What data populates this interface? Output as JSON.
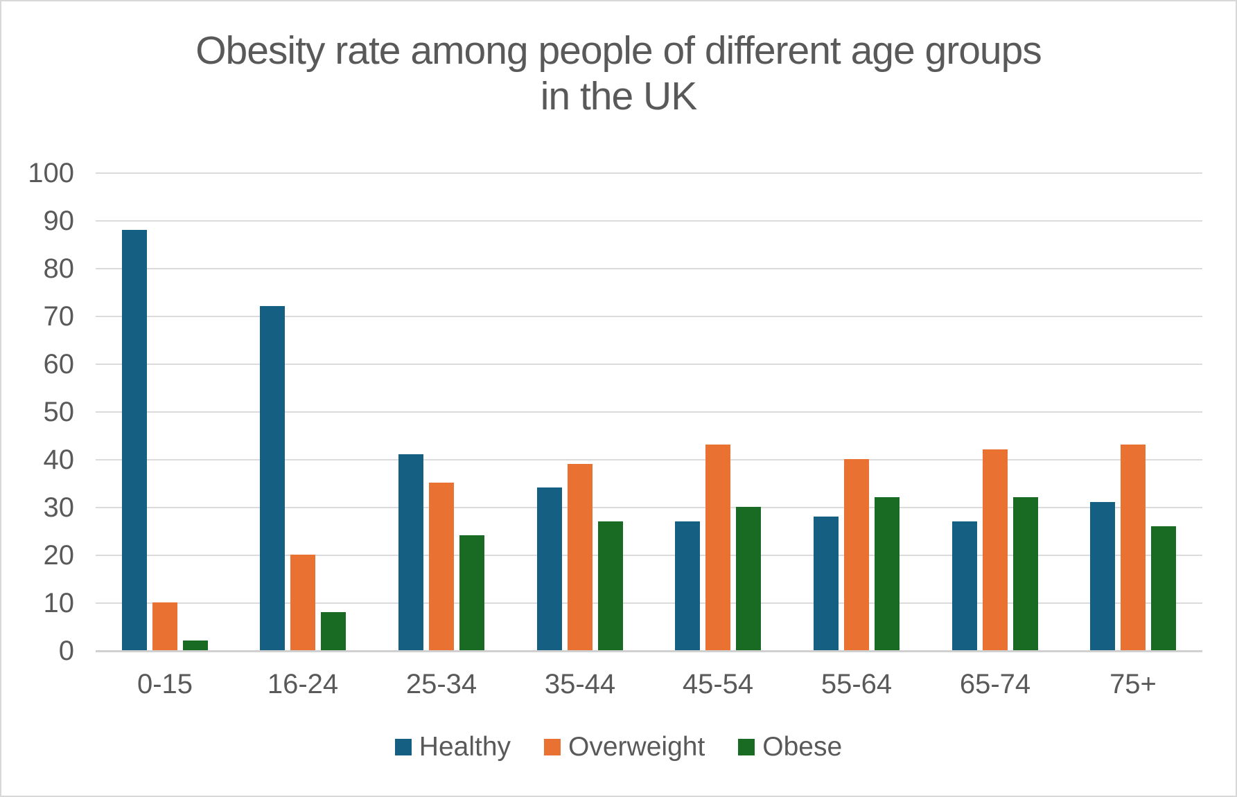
{
  "title": {
    "lines": [
      "Obesity rate among people of different age groups",
      "in the UK"
    ]
  },
  "chart_data": {
    "type": "bar",
    "title": "Obesity rate among people of different age groups in the UK",
    "categories": [
      "0-15",
      "16-24",
      "25-34",
      "35-44",
      "45-54",
      "55-64",
      "65-74",
      "75+"
    ],
    "series": [
      {
        "name": "Healthy",
        "color": "#156082",
        "values": [
          88,
          72,
          41,
          34,
          27,
          28,
          27,
          31
        ]
      },
      {
        "name": "Overweight",
        "color": "#E97132",
        "values": [
          10,
          20,
          35,
          39,
          43,
          40,
          42,
          43
        ]
      },
      {
        "name": "Obese",
        "color": "#196B24",
        "values": [
          2,
          8,
          24,
          27,
          30,
          32,
          32,
          26
        ]
      }
    ],
    "xlabel": "",
    "ylabel": "",
    "ylim": [
      0,
      100
    ],
    "yticks": [
      0,
      10,
      20,
      30,
      40,
      50,
      60,
      70,
      80,
      90,
      100
    ],
    "grid": "horizontal",
    "legend_position": "bottom",
    "legend": [
      "Healthy",
      "Overweight",
      "Obese"
    ]
  },
  "colors": {
    "text": "#595959",
    "gridline": "#DBDBDB",
    "axis_line": "#D0D0D0",
    "background": "#FFFFFF",
    "border": "#D8D8D8",
    "healthy": "#156082",
    "overweight": "#E97132",
    "obese": "#196B24"
  }
}
